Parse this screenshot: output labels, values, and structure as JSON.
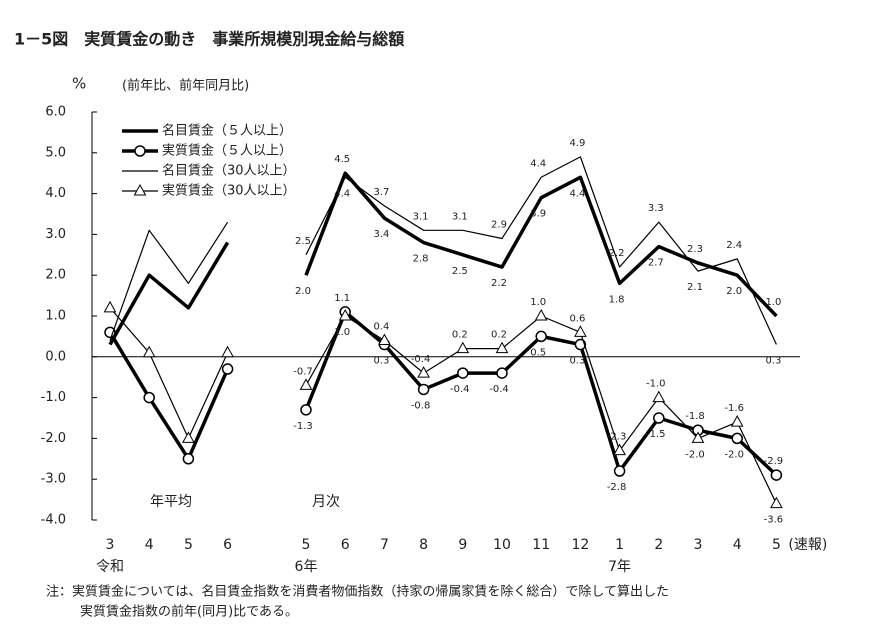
{
  "chart_data": {
    "type": "line",
    "title": "1－5図　実質賃金の動き　事業所規模別現金給与総額",
    "y_unit": "%",
    "subtitle": "(前年比、前年同月比)",
    "group_labels": [
      "年平均",
      "月次"
    ],
    "categories": [
      "3",
      "4",
      "5",
      "6",
      null,
      "5",
      "6",
      "7",
      "8",
      "9",
      "10",
      "11",
      "12",
      "1",
      "2",
      "3",
      "4",
      "5"
    ],
    "x_sublabels": [
      "令和",
      null,
      null,
      null,
      null,
      "6年",
      null,
      null,
      null,
      null,
      null,
      null,
      null,
      "7年",
      null,
      null,
      null,
      null
    ],
    "latest_note": "(速報)",
    "ylim": [
      -4,
      6
    ],
    "yticks": [
      {
        "value": 6,
        "label": "6.0"
      },
      {
        "value": 5,
        "label": "5.0"
      },
      {
        "value": 4,
        "label": "4.0"
      },
      {
        "value": 3,
        "label": "3.0"
      },
      {
        "value": 2,
        "label": "2.0"
      },
      {
        "value": 1,
        "label": "1.0"
      },
      {
        "value": 0,
        "label": "0.0"
      },
      {
        "value": -1,
        "label": "-1.0"
      },
      {
        "value": -2,
        "label": "-2.0"
      },
      {
        "value": -3,
        "label": "-3.0"
      },
      {
        "value": -4,
        "label": "-4.0"
      }
    ],
    "series": [
      {
        "name": "名目賃金（５人以上）",
        "color": "#000000",
        "style": "thick",
        "marker": "none",
        "values": [
          0.3,
          2.0,
          1.2,
          2.8,
          null,
          2.0,
          4.5,
          3.4,
          2.8,
          2.5,
          2.2,
          3.9,
          4.4,
          1.8,
          2.7,
          2.3,
          2.0,
          1.0
        ],
        "value_labels": [
          null,
          null,
          null,
          null,
          null,
          "2.0",
          "4.5",
          "3.4",
          "2.8",
          "2.5",
          "2.2",
          "3.9",
          "4.4",
          "1.8",
          "2.7",
          "2.3",
          "2.0",
          "1.0"
        ]
      },
      {
        "name": "実質賃金（５人以上）",
        "color": "#000000",
        "style": "thick",
        "marker": "circle",
        "values": [
          0.6,
          -1.0,
          -2.5,
          -0.3,
          null,
          -1.3,
          1.1,
          0.3,
          -0.8,
          -0.4,
          -0.4,
          0.5,
          0.3,
          -2.8,
          -1.5,
          -1.8,
          -2.0,
          -2.9
        ],
        "value_labels": [
          null,
          null,
          null,
          null,
          null,
          "-1.3",
          "1.1",
          "0.3",
          "-0.8",
          "-0.4",
          "-0.4",
          "0.5",
          "0.3",
          "-2.8",
          "-1.5",
          "-1.8",
          "-2.0",
          "-2.9"
        ]
      },
      {
        "name": "名目賃金（30人以上）",
        "color": "#000000",
        "style": "thin",
        "marker": "none",
        "values": [
          0.4,
          3.1,
          1.8,
          3.3,
          null,
          2.5,
          4.4,
          3.7,
          3.1,
          3.1,
          2.9,
          4.4,
          4.9,
          2.2,
          3.3,
          2.1,
          2.4,
          0.3
        ],
        "value_labels": [
          null,
          null,
          null,
          null,
          null,
          "2.5",
          "4.4",
          "3.7",
          "3.1",
          "3.1",
          "2.9",
          "4.4",
          "4.9",
          "2.2",
          "3.3",
          "2.1",
          "2.4",
          "0.3"
        ]
      },
      {
        "name": "実質賃金（30人以上）",
        "color": "#000000",
        "style": "thin",
        "marker": "triangle",
        "values": [
          1.2,
          0.1,
          -2.0,
          0.1,
          null,
          -0.7,
          1.0,
          0.4,
          -0.4,
          0.2,
          0.2,
          1.0,
          0.6,
          -2.3,
          -1.0,
          -2.0,
          -1.6,
          -3.6
        ],
        "value_labels": [
          null,
          null,
          null,
          null,
          null,
          "-0.7",
          "1.0",
          "0.4",
          "-0.4",
          "0.2",
          "0.2",
          "1.0",
          "0.6",
          "-2.3",
          "-1.0",
          "-2.0",
          "-1.6",
          "-3.6"
        ]
      }
    ],
    "notes": [
      "注：実質賃金については、名目賃金指数を消費者物価指数（持家の帰属家賃を除く総合）で除して算出した",
      "実質賃金指数の前年(同月)比である。"
    ]
  }
}
